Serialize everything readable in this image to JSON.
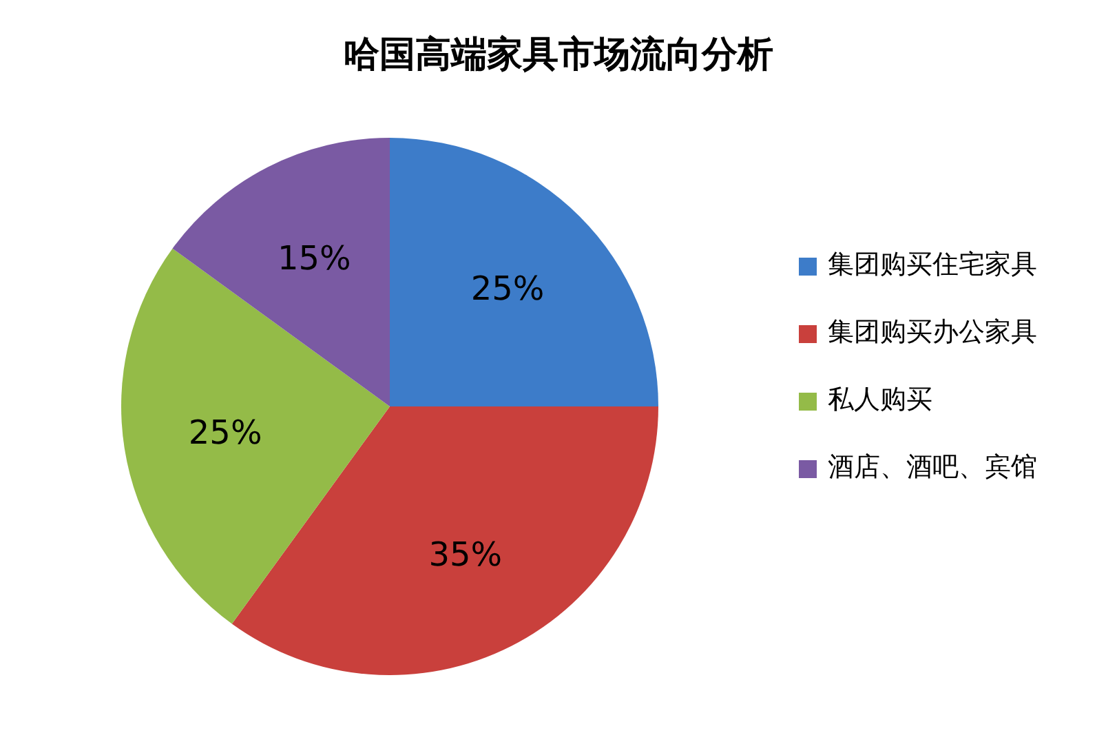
{
  "chart_data": {
    "type": "pie",
    "title": "哈国高端家具市场流向分析",
    "categories": [
      "集团购买住宅家具",
      "集团购买办公家具",
      "私人购买",
      "酒店、酒吧、宾馆"
    ],
    "values": [
      25,
      35,
      25,
      15
    ],
    "colors": [
      "#3d7cc9",
      "#c9403c",
      "#94bb48",
      "#7a5aa3"
    ],
    "value_labels": [
      "25%",
      "35%",
      "25%",
      "15%"
    ],
    "legend": "right"
  }
}
